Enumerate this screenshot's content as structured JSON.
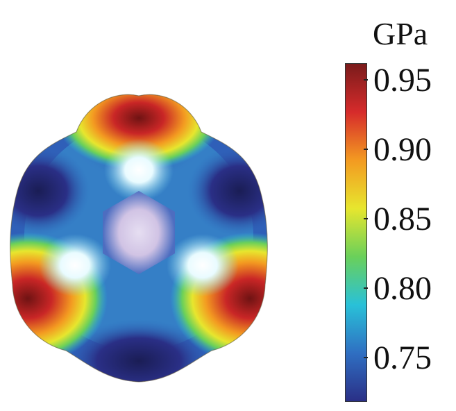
{
  "figure": {
    "colorbar": {
      "unit": "GPa",
      "ticks": [
        "0.95",
        "0.90",
        "0.85",
        "0.80",
        "0.75"
      ],
      "colors": [
        "#7a1b1b",
        "#d62b2b",
        "#f39a21",
        "#e7e62e",
        "#6ad05a",
        "#29c1d8",
        "#2f6fc2",
        "#2a2f86"
      ]
    }
  }
}
